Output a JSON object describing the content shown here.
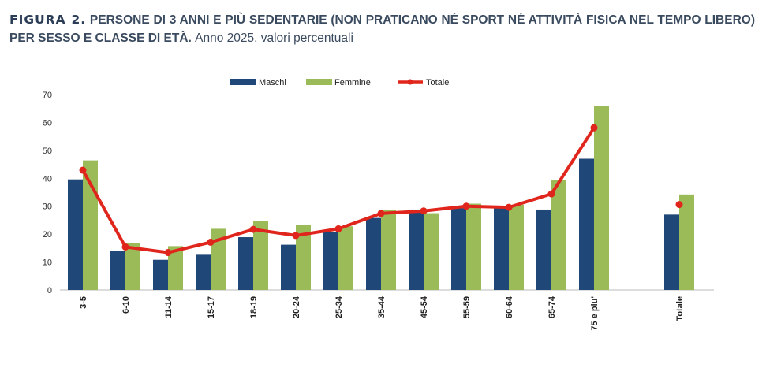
{
  "title": {
    "figure_label": "FIGURA 2.",
    "main": "PERSONE DI 3 ANNI E PIÙ SEDENTARIE (NON PRATICANO NÉ SPORT NÉ ATTIVITÀ FISICA NEL TEMPO LIBERO) PER SESSO E CLASSE DI ETÀ.",
    "subtitle": "Anno 2025, valori percentuali"
  },
  "chart_data": {
    "type": "bar",
    "categories": [
      "3-5",
      "6-10",
      "11-14",
      "15-17",
      "18-19",
      "20-24",
      "25-34",
      "35-44",
      "45-54",
      "55-59",
      "60-64",
      "65-74",
      "75 e piu'",
      "Totale"
    ],
    "series": [
      {
        "name": "Maschi",
        "type": "bar",
        "color": "#1f4778",
        "values": [
          39.6,
          14.1,
          10.8,
          12.6,
          18.9,
          16.2,
          20.8,
          25.8,
          28.8,
          29.3,
          29.3,
          28.8,
          47.0,
          27.0
        ]
      },
      {
        "name": "Femmine",
        "type": "bar",
        "color": "#9bbb59",
        "values": [
          46.4,
          16.8,
          15.7,
          21.9,
          24.6,
          23.4,
          22.8,
          28.8,
          27.5,
          30.9,
          30.5,
          39.5,
          66.0,
          34.2
        ]
      },
      {
        "name": "Totale",
        "type": "line",
        "color": "#e0261c",
        "values": [
          42.9,
          15.4,
          13.4,
          17.1,
          21.7,
          19.5,
          21.9,
          27.4,
          28.3,
          30.0,
          29.6,
          34.4,
          58.1,
          30.6
        ]
      }
    ],
    "ylim": [
      0,
      70
    ],
    "yticks": [
      "0",
      "10",
      "20",
      "30",
      "40",
      "50",
      "60",
      "70"
    ],
    "grid": false,
    "legend": "top"
  }
}
